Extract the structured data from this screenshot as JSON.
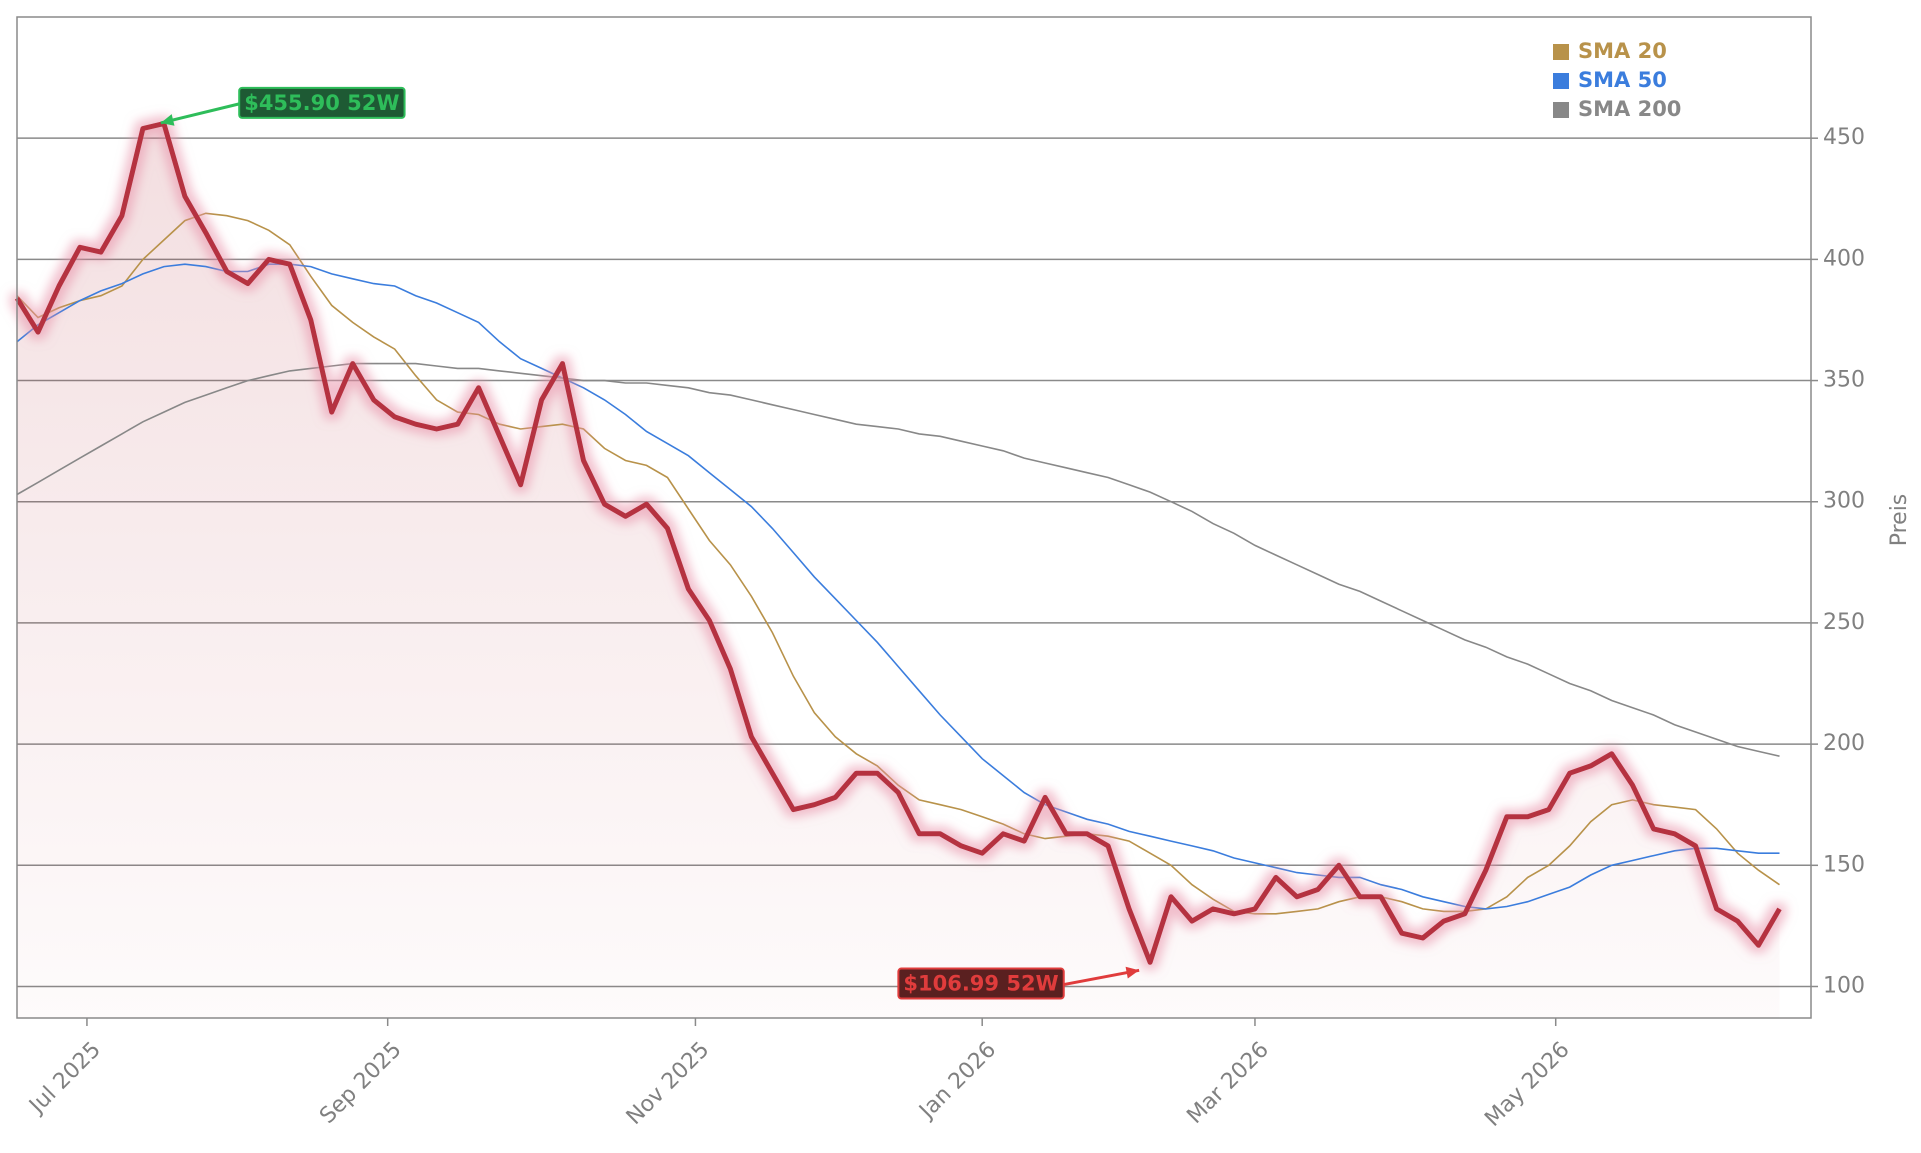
{
  "chart_data": {
    "type": "line",
    "x": [
      0,
      3,
      6,
      9,
      12,
      15,
      18,
      21,
      24,
      27,
      30,
      33,
      36,
      39,
      42,
      45,
      48,
      51,
      54,
      57,
      60,
      63,
      66,
      69,
      72,
      75,
      78,
      81,
      84,
      87,
      90,
      93,
      96,
      99,
      102,
      105,
      108,
      111,
      114,
      117,
      120,
      123,
      126,
      129,
      132,
      135,
      138,
      141,
      144,
      147,
      150,
      153,
      156,
      159,
      162,
      165,
      168,
      171,
      174,
      177,
      180,
      183,
      186,
      189,
      192,
      195,
      198,
      201,
      204,
      207,
      210,
      213,
      216,
      219,
      222,
      225,
      228,
      231,
      234,
      237,
      240,
      243,
      246,
      249,
      252
    ],
    "series": [
      {
        "color": "#b5333f",
        "values": [
          384,
          370,
          389,
          405,
          403,
          418,
          454,
          456,
          426,
          411,
          395,
          390,
          400,
          398,
          375,
          337,
          357,
          342,
          335,
          332,
          330,
          332,
          347,
          327,
          307,
          342,
          357,
          317,
          299,
          294,
          299,
          289,
          264,
          251,
          231,
          203,
          188,
          173,
          175,
          178,
          188,
          188,
          180,
          163,
          163,
          158,
          155,
          163,
          160,
          178,
          163,
          163,
          158,
          132,
          110,
          137,
          127,
          132,
          130,
          132,
          145,
          137,
          140,
          150,
          137,
          137,
          122,
          120,
          127,
          130,
          148,
          170,
          170,
          173,
          188,
          191,
          196,
          183,
          165,
          163,
          158,
          132,
          127,
          117,
          132
        ]
      },
      {
        "name": "SMA 20",
        "color": "#b8924a",
        "values": [
          385,
          376,
          380,
          383,
          385,
          389,
          400,
          408,
          416,
          419,
          418,
          416,
          412,
          406,
          393,
          381,
          374,
          368,
          363,
          352,
          342,
          337,
          336,
          332,
          330,
          331,
          332,
          330,
          322,
          317,
          315,
          310,
          297,
          284,
          274,
          261,
          246,
          228,
          213,
          203,
          196,
          191,
          183,
          177,
          175,
          173,
          170,
          167,
          163,
          161,
          162,
          163,
          162,
          160,
          155,
          150,
          142,
          136,
          131,
          130,
          130,
          131,
          132,
          135,
          137,
          137,
          135,
          132,
          131,
          131,
          132,
          137,
          145,
          150,
          158,
          168,
          175,
          177,
          175,
          174,
          173,
          165,
          155,
          148,
          142
        ]
      },
      {
        "name": "SMA 50",
        "color": "#3b7ddd",
        "values": [
          366,
          373,
          378,
          383,
          387,
          390,
          394,
          397,
          398,
          397,
          395,
          395,
          398,
          398,
          397,
          394,
          392,
          390,
          389,
          385,
          382,
          378,
          374,
          366,
          359,
          355,
          351,
          347,
          342,
          336,
          329,
          324,
          319,
          312,
          305,
          298,
          289,
          279,
          269,
          260,
          251,
          242,
          232,
          222,
          212,
          203,
          194,
          187,
          180,
          175,
          172,
          169,
          167,
          164,
          162,
          160,
          158,
          156,
          153,
          151,
          149,
          147,
          146,
          145,
          145,
          142,
          140,
          137,
          135,
          133,
          132,
          133,
          135,
          138,
          141,
          146,
          150,
          152,
          154,
          156,
          157,
          157,
          156,
          155,
          155
        ]
      },
      {
        "name": "SMA 200",
        "color": "#888888",
        "values": [
          303,
          308,
          313,
          318,
          323,
          328,
          333,
          337,
          341,
          344,
          347,
          350,
          352,
          354,
          355,
          356,
          357,
          357,
          357,
          357,
          356,
          355,
          355,
          354,
          353,
          352,
          351,
          350,
          350,
          349,
          349,
          348,
          347,
          345,
          344,
          342,
          340,
          338,
          336,
          334,
          332,
          331,
          330,
          328,
          327,
          325,
          323,
          321,
          318,
          316,
          314,
          312,
          310,
          307,
          304,
          300,
          296,
          291,
          287,
          282,
          278,
          274,
          270,
          266,
          263,
          259,
          255,
          251,
          247,
          243,
          240,
          236,
          233,
          229,
          225,
          222,
          218,
          215,
          212,
          208,
          205,
          202,
          199,
          197,
          195
        ]
      }
    ],
    "xlim": [
      0,
      256.5
    ],
    "xticks": [
      {
        "value": 10,
        "label": "Jul 2025"
      },
      {
        "value": 53,
        "label": "Sep 2025"
      },
      {
        "value": 97,
        "label": "Nov 2025"
      },
      {
        "value": 138,
        "label": "Jan 2026"
      },
      {
        "value": 177,
        "label": "Mar 2026"
      },
      {
        "value": 220,
        "label": "May 2026"
      }
    ],
    "ylim": [
      87,
      500
    ],
    "yticks": [
      100,
      150,
      200,
      250,
      300,
      350,
      400,
      450
    ],
    "ylabel": "Preis",
    "grid": true,
    "legend": "upper right",
    "annotations": [
      {
        "text": "$455.90 52W",
        "x": 20,
        "y": 455.9,
        "color": "#2ebd5a"
      },
      {
        "text": "$106.99 52W",
        "x": 161,
        "y": 106.99,
        "color": "#e03c3c"
      }
    ]
  }
}
